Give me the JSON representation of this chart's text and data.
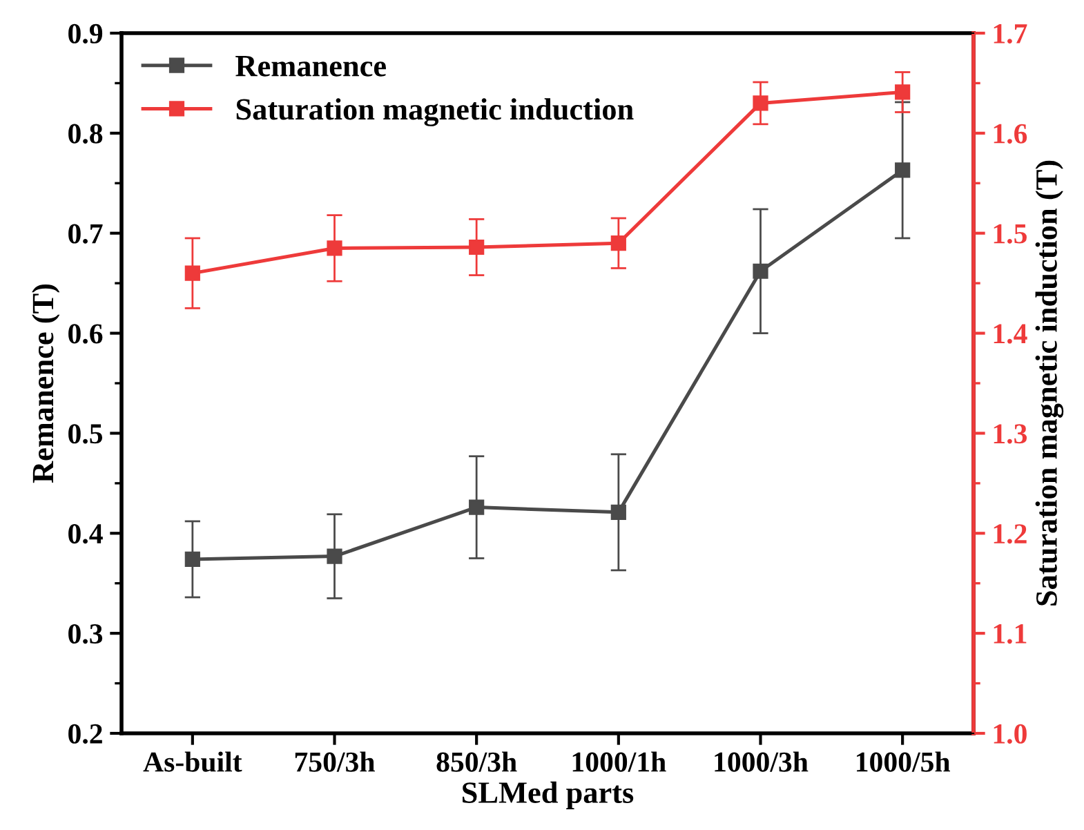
{
  "chart_data": {
    "type": "line",
    "xlabel": "SLMed parts",
    "ylabel": "Remanence (T)",
    "y2label": "Saturation magnetic induction (T)",
    "categories": [
      "As-built",
      "750/3h",
      "850/3h",
      "1000/1h",
      "1000/3h",
      "1000/5h"
    ],
    "series": [
      {
        "name": "Remanence",
        "color": "#4a4a4a",
        "values": [
          0.374,
          0.377,
          0.426,
          0.421,
          0.662,
          0.763
        ],
        "errors": [
          0.038,
          0.042,
          0.051,
          0.058,
          0.062,
          0.068
        ]
      },
      {
        "name": "Saturation magnetic induction",
        "color": "#ee3a3a",
        "axis": "y2",
        "values": [
          1.46,
          1.485,
          1.486,
          1.49,
          1.63,
          1.641
        ],
        "errors": [
          0.035,
          0.033,
          0.028,
          0.025,
          0.021,
          0.02
        ]
      }
    ],
    "ylim": [
      0.2,
      0.9
    ],
    "yticks": [
      0.2,
      {
        "value": 0.25,
        "label": null
      },
      0.3,
      {
        "value": 0.35,
        "label": null
      },
      0.4,
      {
        "value": 0.45,
        "label": null
      },
      0.5,
      {
        "value": 0.55,
        "label": null
      },
      0.6,
      {
        "value": 0.65,
        "label": null
      },
      0.7,
      {
        "value": 0.75,
        "label": null
      },
      0.8,
      {
        "value": 0.85,
        "label": null
      },
      0.9
    ],
    "y2lim": [
      1.0,
      1.7
    ],
    "y2ticks": [
      {
        "value": 1.0,
        "label": "1.0"
      },
      {
        "value": 1.05,
        "label": null
      },
      1.1,
      {
        "value": 1.15,
        "label": null
      },
      1.2,
      {
        "value": 1.25,
        "label": null
      },
      1.3,
      {
        "value": 1.35,
        "label": null
      },
      1.4,
      {
        "value": 1.45,
        "label": null
      },
      1.5,
      {
        "value": 1.55,
        "label": null
      },
      1.6,
      {
        "value": 1.65,
        "label": null
      },
      1.7
    ],
    "legend": "top left",
    "marker": "square",
    "line_style": "solid",
    "grid": false
  }
}
